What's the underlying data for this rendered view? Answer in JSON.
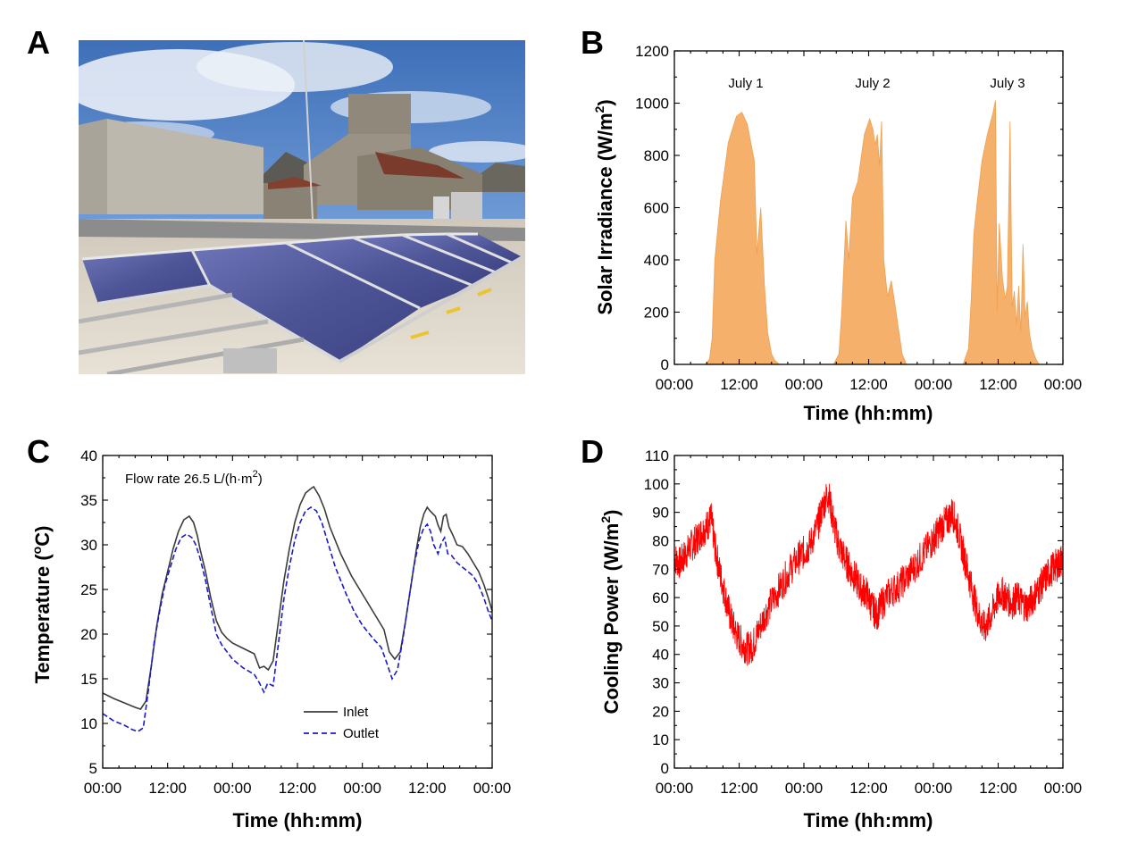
{
  "panel_letters": {
    "a": "A",
    "b": "B",
    "c": "C",
    "d": "D"
  },
  "photo": {
    "description_icon": "rooftop-radiative-cooling-panels-photo"
  },
  "chart_data": [
    {
      "panel": "B",
      "type": "area",
      "xlabel": "Time (hh:mm)",
      "ylabel": "Solar Irradiance (W/m2)",
      "ylim": [
        0,
        1200
      ],
      "yticks": [
        0,
        200,
        400,
        600,
        800,
        1000,
        1200
      ],
      "xlim_hours": [
        0,
        72
      ],
      "xtick_hours": [
        0,
        12,
        24,
        36,
        48,
        60,
        72
      ],
      "xtick_labels": [
        "00:00",
        "12:00",
        "00:00",
        "12:00",
        "00:00",
        "12:00",
        "00:00"
      ],
      "annotations": [
        "July 1",
        "July 2",
        "July 3"
      ],
      "color": "#F5B06B",
      "series": [
        {
          "hours": [
            5.8,
            6.5,
            7.0,
            7.5,
            8.5,
            10.0,
            11.5,
            12.5,
            13.5,
            14.8,
            15.3,
            16.0,
            16.7,
            17.3,
            18.0,
            18.6,
            19.5
          ],
          "values": [
            0,
            20,
            100,
            400,
            620,
            850,
            950,
            965,
            920,
            780,
            420,
            600,
            300,
            120,
            40,
            15,
            0
          ]
        },
        {
          "hours": [
            29.5,
            30.5,
            31.0,
            31.8,
            32.3,
            33.0,
            34.0,
            35.2,
            36.2,
            36.8,
            37.2,
            37.6,
            38.0,
            38.4,
            38.8,
            39.5,
            40.2,
            40.8,
            41.5,
            42.2,
            43.0
          ],
          "values": [
            0,
            40,
            200,
            550,
            400,
            640,
            700,
            880,
            940,
            900,
            840,
            880,
            760,
            930,
            400,
            260,
            320,
            240,
            140,
            40,
            0
          ]
        },
        {
          "hours": [
            53.5,
            54.5,
            55.0,
            55.5,
            56.0,
            57.0,
            58.0,
            59.0,
            59.5,
            59.8,
            60.2,
            60.8,
            61.3,
            61.7,
            62.2,
            62.6,
            63.0,
            63.4,
            63.8,
            64.2,
            64.6,
            65.0,
            65.4,
            65.8,
            66.3,
            67.0,
            67.6
          ],
          "values": [
            0,
            60,
            250,
            500,
            600,
            780,
            880,
            960,
            1010,
            200,
            540,
            330,
            250,
            300,
            930,
            220,
            280,
            150,
            300,
            120,
            460,
            180,
            240,
            120,
            60,
            20,
            0
          ]
        }
      ]
    },
    {
      "panel": "C",
      "type": "line",
      "xlabel": "Time (hh:mm)",
      "ylabel": "Temperature (°C)",
      "ylabel_main": "Temperature (",
      "ylabel_sup": "o",
      "ylabel_tail": "C)",
      "ylim": [
        5,
        40
      ],
      "yticks": [
        5,
        10,
        15,
        20,
        25,
        30,
        35,
        40
      ],
      "xlim_hours": [
        0,
        72
      ],
      "xtick_hours": [
        0,
        12,
        24,
        36,
        48,
        60,
        72
      ],
      "xtick_labels": [
        "00:00",
        "12:00",
        "00:00",
        "12:00",
        "00:00",
        "12:00",
        "00:00"
      ],
      "annotation": {
        "text": "Flow rate 26.5 L/(h·m",
        "sup": "2",
        "tail": ")"
      },
      "legend": {
        "position": "bottom-center",
        "entries": [
          "Inlet",
          "Outlet"
        ]
      },
      "series": [
        {
          "name": "Inlet",
          "color": "#3C3C3C",
          "dash": "solid",
          "hours": [
            0,
            2,
            4,
            6,
            7,
            8,
            9,
            10,
            11,
            12,
            13,
            14,
            15,
            16,
            16.8,
            17.5,
            18,
            19,
            20,
            21,
            22,
            23,
            24,
            26,
            28,
            29,
            29.8,
            30.6,
            31.5,
            32.5,
            33.5,
            34.5,
            35.5,
            36.5,
            37.5,
            38.5,
            39,
            39.5,
            40,
            41,
            42,
            44,
            46,
            47,
            48,
            50,
            52,
            53,
            54,
            55,
            56,
            57,
            58,
            58.7,
            59.4,
            60,
            60.5,
            61,
            61.5,
            62,
            62.5,
            63,
            63.5,
            64,
            64.8,
            65.5,
            66.5,
            67.5,
            68.5,
            69.5,
            70.5,
            71.3,
            72
          ],
          "values": [
            13.4,
            12.8,
            12.3,
            11.8,
            11.6,
            12.5,
            16.5,
            21,
            24.5,
            27,
            29.5,
            31.5,
            32.8,
            33.2,
            32.5,
            31,
            29.5,
            27,
            24,
            21.5,
            20.2,
            19.5,
            19.0,
            18.4,
            17.8,
            16.2,
            16.4,
            16.0,
            17.0,
            21.5,
            26,
            29.5,
            32.5,
            34.5,
            35.8,
            36.3,
            36.5,
            36.0,
            35.5,
            34,
            32,
            29,
            26.5,
            25.5,
            24.5,
            22.5,
            20.5,
            18.0,
            17.2,
            18.0,
            21.5,
            25.5,
            29.5,
            32,
            33.5,
            34.2,
            33.8,
            33.5,
            33.2,
            32.2,
            31.5,
            33.2,
            33.4,
            32.0,
            31.0,
            30.0,
            29.8,
            29.0,
            28.0,
            27.0,
            25.5,
            24.0,
            22.6
          ]
        },
        {
          "name": "Outlet",
          "color": "#1A1ACC",
          "dash": "dashed",
          "hours": [
            0,
            2,
            4,
            5.5,
            6.5,
            7.5,
            8.5,
            9.5,
            10.5,
            11.5,
            12.5,
            13.5,
            14.5,
            15.5,
            16.5,
            17.2,
            18,
            19,
            20,
            21,
            22,
            23,
            24,
            26,
            28,
            29,
            29.8,
            30.5,
            31.5,
            32.5,
            33.5,
            34.5,
            35.5,
            36.5,
            37.5,
            38.5,
            39.5,
            40.5,
            41.5,
            43,
            45,
            46.5,
            48,
            50,
            51.5,
            52.5,
            53.5,
            54.5,
            55.5,
            56.5,
            57.5,
            58.5,
            59.3,
            60,
            60.6,
            61.2,
            62,
            62.6,
            63.2,
            63.8,
            64.5,
            65.5,
            66.5,
            67.5,
            68.5,
            69.5,
            70.5,
            71.3,
            72
          ],
          "values": [
            11.1,
            10.3,
            9.8,
            9.3,
            9.1,
            9.5,
            14,
            19,
            22.5,
            25.5,
            27.5,
            29.5,
            30.8,
            31.2,
            30.8,
            30.0,
            28.5,
            26,
            23,
            20,
            18.8,
            18.0,
            17.2,
            16.2,
            15.5,
            14.5,
            13.5,
            14.5,
            14.2,
            19,
            24,
            27.5,
            30.5,
            32.5,
            33.8,
            34.2,
            33.8,
            32.5,
            30.5,
            27.5,
            24.5,
            22.5,
            21.0,
            19.5,
            18.5,
            16.8,
            15.0,
            16.0,
            19.5,
            23.5,
            27.5,
            30.5,
            31.8,
            32.3,
            31.5,
            30.0,
            29.0,
            30.2,
            30.8,
            29.0,
            28.8,
            28.0,
            27.5,
            27.0,
            26.5,
            25.5,
            24.0,
            22.5,
            21.5
          ]
        }
      ]
    },
    {
      "panel": "D",
      "type": "line",
      "xlabel": "Time (hh:mm)",
      "ylabel": "Cooling Power (W/m2)",
      "ylim": [
        0,
        110
      ],
      "yticks": [
        0,
        10,
        20,
        30,
        40,
        50,
        60,
        70,
        80,
        90,
        100,
        110
      ],
      "xlim_hours": [
        0,
        72
      ],
      "xtick_hours": [
        0,
        12,
        24,
        36,
        48,
        60,
        72
      ],
      "xtick_labels": [
        "00:00",
        "12:00",
        "00:00",
        "12:00",
        "00:00",
        "12:00",
        "00:00"
      ],
      "series": [
        {
          "name": "",
          "color": "#FF0000",
          "hours": [
            0,
            1,
            2,
            3,
            4,
            5,
            6,
            6.8,
            7.5,
            8.5,
            9.5,
            10.5,
            11.5,
            12.5,
            13.5,
            14.5,
            15.5,
            17,
            18.5,
            20,
            21.5,
            23,
            24,
            25,
            26.5,
            27.5,
            28.5,
            29.5,
            30.5,
            31.5,
            32.5,
            33.5,
            34.5,
            35.5,
            36.5,
            37.5,
            38.5,
            40,
            41.5,
            43,
            44.5,
            46,
            47.5,
            48.5,
            49.5,
            50.5,
            51.5,
            52.5,
            53.5,
            54.5,
            55.5,
            56.5,
            57.5,
            58.5,
            59.5,
            60.5,
            61.5,
            62.5,
            63.5,
            64.5,
            65.5,
            66.5,
            67.5,
            68.5,
            69.5,
            70.5,
            71.3,
            72
          ],
          "values": [
            74,
            72,
            75,
            78,
            80,
            83,
            85,
            88,
            78,
            68,
            60,
            52,
            47,
            44,
            42,
            43,
            48,
            55,
            60,
            65,
            70,
            74,
            76,
            78,
            85,
            92,
            97,
            86,
            78,
            74,
            70,
            67,
            63,
            62,
            57,
            54,
            58,
            62,
            64,
            67,
            71,
            75,
            79,
            82,
            85,
            87,
            90,
            84,
            76,
            68,
            60,
            53,
            49,
            53,
            58,
            62,
            60,
            58,
            60,
            58,
            57,
            60,
            63,
            66,
            69,
            71,
            72,
            74
          ],
          "noise_amplitude": 6
        }
      ]
    }
  ]
}
